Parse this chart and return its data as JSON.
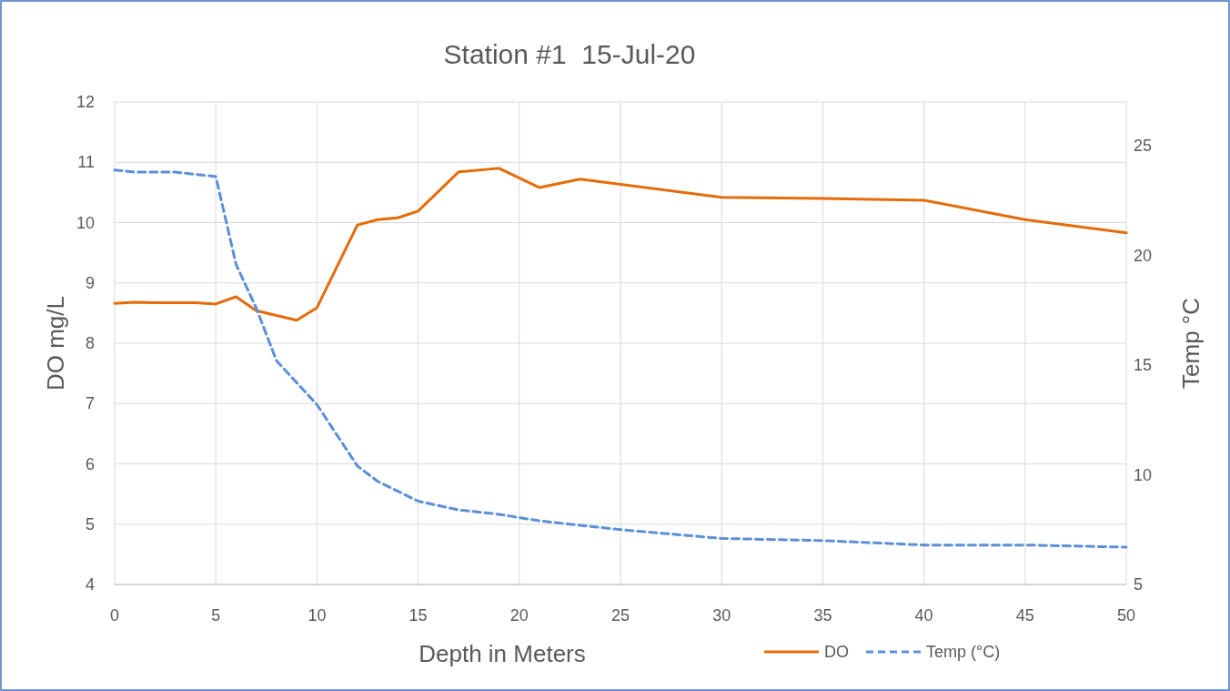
{
  "chart_data": {
    "type": "line",
    "title": "Station #1  15-Jul-20",
    "xlabel": "Depth in Meters",
    "ylabel": "DO mg/L",
    "y2label": "Temp °C",
    "xlim": [
      0,
      50
    ],
    "xticks": [
      0,
      5,
      10,
      15,
      20,
      25,
      30,
      35,
      40,
      45,
      50
    ],
    "ylim": [
      4,
      12
    ],
    "yticks": [
      4,
      5,
      6,
      7,
      8,
      9,
      10,
      11,
      12
    ],
    "y2lim": [
      5,
      27
    ],
    "y2ticks": [
      5,
      10,
      15,
      20,
      25
    ],
    "grid": true,
    "legend": "bottom",
    "marker": "none",
    "series": [
      {
        "name": "DO",
        "color": "#e46c0a",
        "line_style": "solid",
        "x": [
          0,
          1,
          2,
          4,
          5,
          6,
          7,
          9,
          10,
          12,
          13,
          14,
          15,
          17,
          19,
          21,
          23,
          30,
          35,
          40,
          45,
          50
        ],
        "values": [
          8.66,
          8.68,
          8.67,
          8.67,
          8.65,
          8.77,
          8.54,
          8.38,
          8.59,
          9.96,
          10.05,
          10.08,
          10.19,
          10.84,
          10.9,
          10.58,
          10.72,
          10.42,
          10.4,
          10.37,
          10.05,
          9.83
        ]
      },
      {
        "name": "Temp (°C)",
        "color": "#5b8fd9",
        "line_style": "dashed",
        "axis": "y2",
        "x": [
          0,
          1,
          3,
          5,
          6,
          7,
          8,
          9,
          10,
          12,
          13,
          15,
          17,
          19,
          21,
          23,
          25,
          30,
          35,
          40,
          45,
          50
        ],
        "values": [
          23.9,
          23.8,
          23.8,
          23.6,
          19.6,
          17.6,
          15.2,
          14.2,
          13.2,
          10.4,
          9.7,
          8.8,
          8.4,
          8.2,
          7.9,
          7.7,
          7.5,
          7.1,
          7.0,
          6.8,
          6.8,
          6.7
        ]
      }
    ]
  }
}
